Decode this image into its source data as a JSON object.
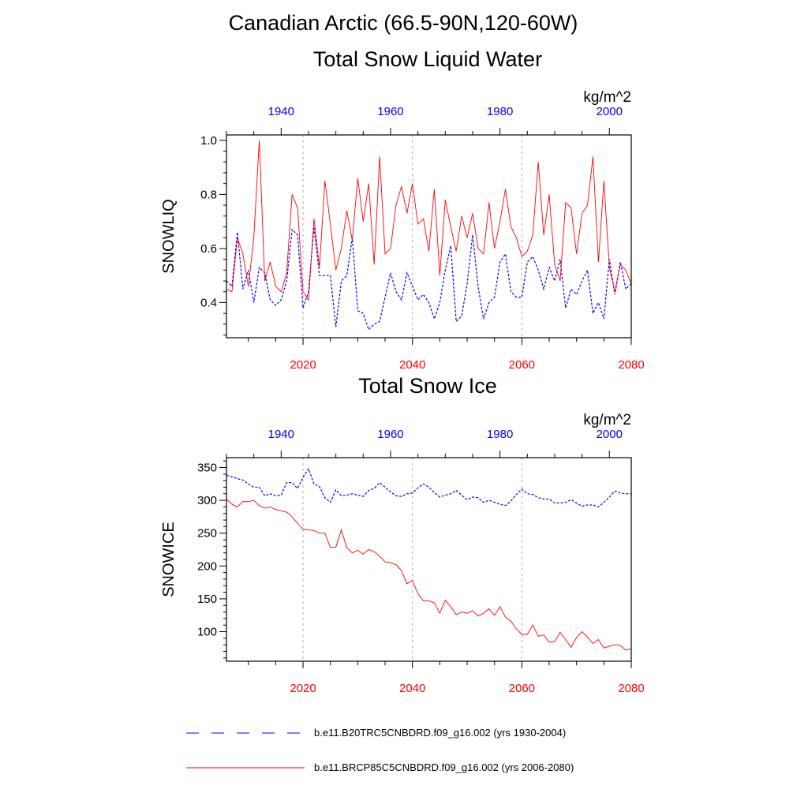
{
  "title": {
    "line1": "Canadian Arctic (66.5-90N,120-60W)",
    "panel1": "Total Snow Liquid Water",
    "panel2": "Total Snow Ice"
  },
  "colors": {
    "historical": "#0000ff",
    "future": "#ff0000",
    "grid": "#aaaaaa"
  },
  "chart_data": [
    {
      "type": "line",
      "title": "Total Snow Liquid Water",
      "ylabel": "SNOWLIQ",
      "units": "kg/m^2",
      "xlim_bottom": [
        2006,
        2080
      ],
      "xlim_top": [
        1930,
        2004
      ],
      "ylim": [
        0.27,
        1.02
      ],
      "yticks": [
        0.4,
        0.6,
        0.8,
        1.0
      ],
      "ytick_labels": [
        "0.4",
        "0.6",
        "0.8",
        "1.0"
      ],
      "x_bottom_ticks": [
        2020,
        2040,
        2060,
        2080
      ],
      "x_bottom_labels": [
        "2020",
        "2040",
        "2060",
        "2080"
      ],
      "x_top_ticks": [
        1940,
        1960,
        1980,
        2000
      ],
      "x_top_labels": [
        "1940",
        "1960",
        "1980",
        "2000"
      ],
      "series": [
        {
          "name": "b.e11.B20TRC5CNBDRD.f09_g16.002 (yrs 1930-2004)",
          "axis": "top",
          "start": 1930,
          "style": "dashed",
          "values": [
            0.48,
            0.46,
            0.66,
            0.45,
            0.52,
            0.4,
            0.53,
            0.51,
            0.41,
            0.39,
            0.41,
            0.48,
            0.67,
            0.65,
            0.38,
            0.44,
            0.68,
            0.5,
            0.5,
            0.5,
            0.31,
            0.48,
            0.5,
            0.64,
            0.37,
            0.36,
            0.3,
            0.32,
            0.33,
            0.42,
            0.51,
            0.44,
            0.41,
            0.51,
            0.46,
            0.41,
            0.43,
            0.4,
            0.34,
            0.4,
            0.52,
            0.61,
            0.33,
            0.35,
            0.47,
            0.65,
            0.46,
            0.34,
            0.4,
            0.42,
            0.55,
            0.58,
            0.44,
            0.42,
            0.42,
            0.55,
            0.57,
            0.52,
            0.45,
            0.53,
            0.48,
            0.56,
            0.38,
            0.45,
            0.43,
            0.48,
            0.52,
            0.36,
            0.4,
            0.34,
            0.56,
            0.43,
            0.55,
            0.45,
            0.47
          ]
        },
        {
          "name": "b.e11.BRCP85C5CNBDRD.f09_g16.002 (yrs 2006-2080)",
          "axis": "bottom",
          "start": 2006,
          "style": "solid",
          "values": [
            0.45,
            0.44,
            0.64,
            0.58,
            0.46,
            0.64,
            1.0,
            0.48,
            0.55,
            0.46,
            0.44,
            0.51,
            0.8,
            0.75,
            0.44,
            0.41,
            0.71,
            0.53,
            0.85,
            0.69,
            0.52,
            0.6,
            0.74,
            0.63,
            0.86,
            0.7,
            0.84,
            0.54,
            0.94,
            0.58,
            0.6,
            0.76,
            0.83,
            0.73,
            0.84,
            0.69,
            0.71,
            0.59,
            0.82,
            0.5,
            0.78,
            0.68,
            0.59,
            0.72,
            0.64,
            0.73,
            0.6,
            0.58,
            0.77,
            0.6,
            0.7,
            0.82,
            0.68,
            0.64,
            0.57,
            0.59,
            0.65,
            0.92,
            0.65,
            0.8,
            0.54,
            0.48,
            0.77,
            0.75,
            0.58,
            0.73,
            0.76,
            0.94,
            0.55,
            0.85,
            0.53,
            0.44,
            0.54,
            0.52,
            0.47
          ]
        }
      ]
    },
    {
      "type": "line",
      "title": "Total Snow Ice",
      "ylabel": "SNOWICE",
      "units": "kg/m^2",
      "xlim_bottom": [
        2006,
        2080
      ],
      "xlim_top": [
        1930,
        2004
      ],
      "ylim": [
        55,
        365
      ],
      "yticks": [
        100,
        150,
        200,
        250,
        300,
        350
      ],
      "ytick_labels": [
        "100",
        "150",
        "200",
        "250",
        "300",
        "350"
      ],
      "x_bottom_ticks": [
        2020,
        2040,
        2060,
        2080
      ],
      "x_bottom_labels": [
        "2020",
        "2040",
        "2060",
        "2080"
      ],
      "x_top_ticks": [
        1940,
        1960,
        1980,
        2000
      ],
      "x_top_labels": [
        "1940",
        "1960",
        "1980",
        "2000"
      ],
      "series": [
        {
          "name": "b.e11.B20TRC5CNBDRD.f09_g16.002 (yrs 1930-2004)",
          "axis": "top",
          "start": 1930,
          "style": "dashed",
          "values": [
            338,
            336,
            333,
            331,
            325,
            320,
            320,
            307,
            310,
            307,
            308,
            327,
            327,
            318,
            335,
            348,
            325,
            321,
            304,
            297,
            316,
            307,
            308,
            310,
            308,
            306,
            315,
            318,
            327,
            320,
            313,
            307,
            306,
            310,
            311,
            319,
            325,
            320,
            312,
            305,
            308,
            310,
            315,
            308,
            301,
            305,
            304,
            297,
            300,
            297,
            294,
            292,
            299,
            309,
            317,
            310,
            309,
            304,
            302,
            302,
            296,
            296,
            297,
            301,
            296,
            291,
            293,
            293,
            290,
            297,
            305,
            314,
            311,
            310,
            310
          ]
        },
        {
          "name": "b.e11.BRCP85C5CNBDRD.f09_g16.002 (yrs 2006-2080)",
          "axis": "bottom",
          "start": 2006,
          "style": "solid",
          "values": [
            302,
            294,
            290,
            298,
            298,
            300,
            292,
            288,
            290,
            286,
            284,
            282,
            275,
            265,
            256,
            255,
            254,
            250,
            250,
            228,
            229,
            255,
            228,
            220,
            224,
            218,
            225,
            222,
            215,
            206,
            205,
            202,
            193,
            173,
            178,
            158,
            147,
            147,
            144,
            128,
            148,
            138,
            126,
            130,
            128,
            132,
            124,
            128,
            135,
            125,
            138,
            122,
            116,
            104,
            96,
            96,
            110,
            93,
            95,
            84,
            85,
            99,
            88,
            76,
            91,
            100,
            92,
            82,
            88,
            75,
            78,
            80,
            79,
            72,
            74
          ]
        }
      ]
    }
  ],
  "legend": {
    "entries": [
      {
        "label": "b.e11.B20TRC5CNBDRD.f09_g16.002 (yrs 1930-2004)",
        "style": "dashed",
        "color": "#0000ff"
      },
      {
        "label": "b.e11.BRCP85C5CNBDRD.f09_g16.002 (yrs 2006-2080)",
        "style": "solid",
        "color": "#ff0000"
      }
    ]
  }
}
